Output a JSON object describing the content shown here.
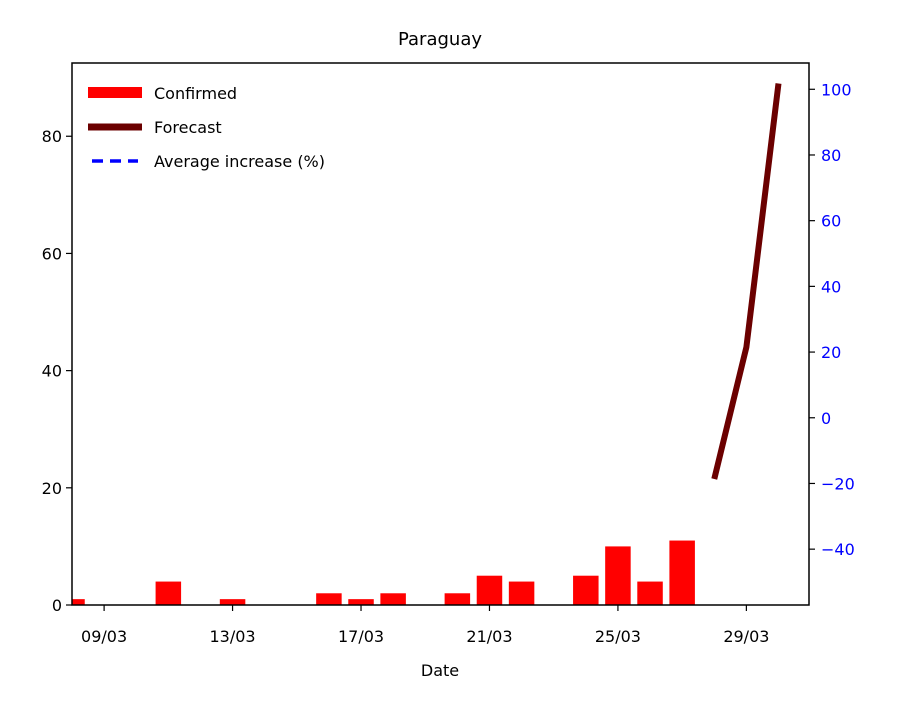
{
  "chart_data": {
    "type": "bar",
    "title": "Paraguay",
    "xlabel": "Date",
    "x_tick_labels": [
      "09/03",
      "13/03",
      "17/03",
      "21/03",
      "25/03",
      "29/03"
    ],
    "x_tick_days": [
      9,
      13,
      17,
      21,
      25,
      29
    ],
    "xlim_days": [
      8.0,
      30.95
    ],
    "left_axis": {
      "ylim": [
        0,
        92.5
      ],
      "ticks": [
        0,
        20,
        40,
        60,
        80
      ],
      "color": "#000000"
    },
    "right_axis": {
      "ylim": [
        -57,
        108
      ],
      "ticks": [
        -40,
        -20,
        0,
        20,
        40,
        60,
        80,
        100
      ],
      "tick_labels": [
        "−40",
        "−20",
        "0",
        "20",
        "40",
        "60",
        "80",
        "100"
      ],
      "color": "#0000ff"
    },
    "series": [
      {
        "name": "Confirmed",
        "type": "bar",
        "color": "#ff0000",
        "axis": "left",
        "days": [
          8,
          11,
          13,
          16,
          17,
          18,
          20,
          21,
          22,
          24,
          25,
          26,
          27
        ],
        "values": [
          1,
          4,
          1,
          2,
          1,
          2,
          2,
          5,
          4,
          5,
          10,
          4,
          11
        ]
      },
      {
        "name": "Forecast",
        "type": "line",
        "color": "#6b0000",
        "axis": "left",
        "days": [
          28,
          29,
          30
        ],
        "values": [
          21.5,
          44,
          89
        ]
      },
      {
        "name": "Average increase (%)",
        "type": "line-dashed",
        "color": "#0000ff",
        "axis": "right",
        "days": [],
        "values": []
      }
    ],
    "legend": {
      "placement": "top-left"
    },
    "grid": false
  }
}
